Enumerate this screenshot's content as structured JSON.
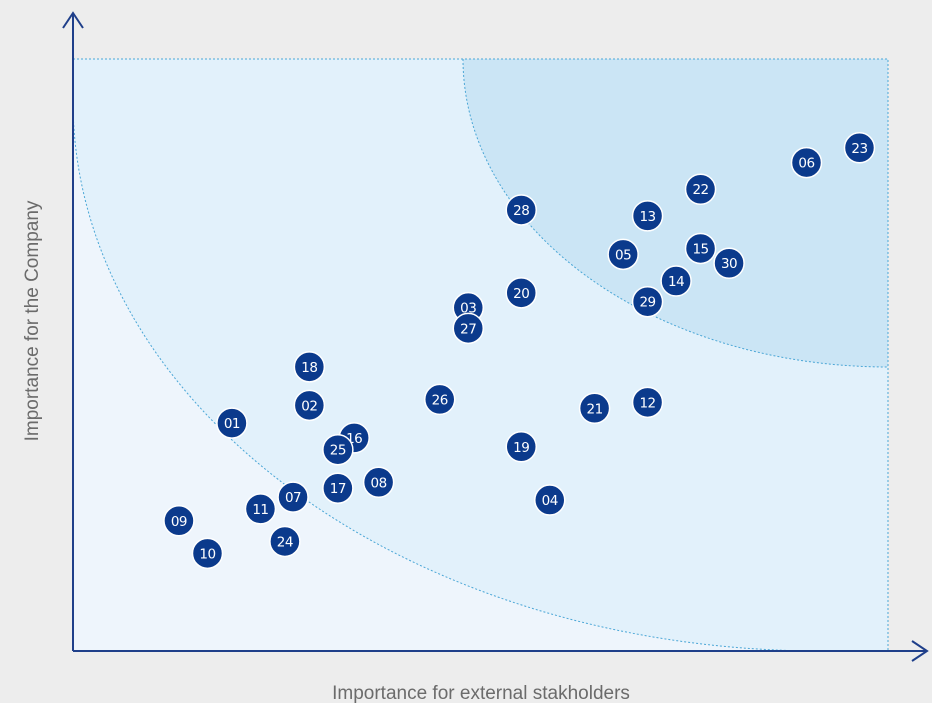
{
  "chart_data": {
    "type": "scatter",
    "title": "",
    "xlabel": "Importance for external stakholders",
    "ylabel": "Importance for the Company",
    "xlim": [
      0,
      100
    ],
    "ylim": [
      0,
      100
    ],
    "grid": false,
    "ticks": "none",
    "zones": [
      "low",
      "medium",
      "high"
    ],
    "colors": {
      "background": "#ededed",
      "zone_low": "#eef5fc",
      "zone_medium": "#e2f1fb",
      "zone_high": "#cbe5f5",
      "zone_border": "#4aa6d6",
      "axis": "#1f3f8a",
      "point": "#0b3a8c",
      "point_text": "#ffffff"
    },
    "points": [
      {
        "label": "01",
        "x": 19.5,
        "y": 38.5
      },
      {
        "label": "02",
        "x": 29.0,
        "y": 41.5
      },
      {
        "label": "03",
        "x": 48.5,
        "y": 58.0
      },
      {
        "label": "04",
        "x": 58.5,
        "y": 25.5
      },
      {
        "label": "05",
        "x": 67.5,
        "y": 67.0
      },
      {
        "label": "06",
        "x": 90.0,
        "y": 82.5
      },
      {
        "label": "07",
        "x": 27.0,
        "y": 26.0
      },
      {
        "label": "08",
        "x": 37.5,
        "y": 28.5
      },
      {
        "label": "09",
        "x": 13.0,
        "y": 22.0
      },
      {
        "label": "10",
        "x": 16.5,
        "y": 16.5
      },
      {
        "label": "11",
        "x": 23.0,
        "y": 24.0
      },
      {
        "label": "12",
        "x": 70.5,
        "y": 42.0
      },
      {
        "label": "13",
        "x": 70.5,
        "y": 73.5
      },
      {
        "label": "14",
        "x": 74.0,
        "y": 62.5
      },
      {
        "label": "15",
        "x": 77.0,
        "y": 68.0
      },
      {
        "label": "16",
        "x": 34.5,
        "y": 36.0
      },
      {
        "label": "17",
        "x": 32.5,
        "y": 27.5
      },
      {
        "label": "18",
        "x": 29.0,
        "y": 48.0
      },
      {
        "label": "19",
        "x": 55.0,
        "y": 34.5
      },
      {
        "label": "20",
        "x": 55.0,
        "y": 60.5
      },
      {
        "label": "21",
        "x": 64.0,
        "y": 41.0
      },
      {
        "label": "22",
        "x": 77.0,
        "y": 78.0
      },
      {
        "label": "23",
        "x": 96.5,
        "y": 85.0
      },
      {
        "label": "24",
        "x": 26.0,
        "y": 18.5
      },
      {
        "label": "25",
        "x": 32.5,
        "y": 34.0
      },
      {
        "label": "26",
        "x": 45.0,
        "y": 42.5
      },
      {
        "label": "27",
        "x": 48.5,
        "y": 54.5
      },
      {
        "label": "28",
        "x": 55.0,
        "y": 74.5
      },
      {
        "label": "29",
        "x": 70.5,
        "y": 59.0
      },
      {
        "label": "30",
        "x": 80.5,
        "y": 65.5
      }
    ]
  }
}
